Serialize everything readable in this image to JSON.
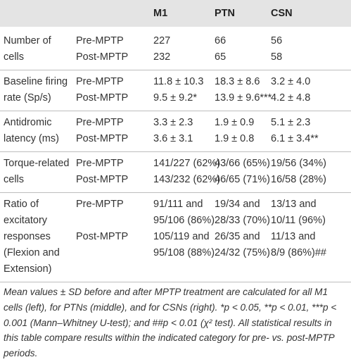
{
  "table": {
    "columns": [
      "M1",
      "PTN",
      "CSN"
    ],
    "groups": [
      {
        "label": [
          "Number of",
          "cells"
        ],
        "rows": [
          {
            "phase": "Pre-MPTP",
            "cells": [
              [
                "227"
              ],
              [
                "66"
              ],
              [
                "56"
              ]
            ]
          },
          {
            "phase": "Post-MPTP",
            "cells": [
              [
                "232"
              ],
              [
                "65"
              ],
              [
                "58"
              ]
            ]
          }
        ]
      },
      {
        "label": [
          "Baseline firing",
          "rate (Sp/s)"
        ],
        "rows": [
          {
            "phase": "Pre-MPTP",
            "cells": [
              [
                "11.8 ± 10.3"
              ],
              [
                "18.3 ± 8.6"
              ],
              [
                "3.2 ± 4.0"
              ]
            ]
          },
          {
            "phase": "Post-MPTP",
            "cells": [
              [
                "9.5 ± 9.2*"
              ],
              [
                "13.9 ± 9.6***"
              ],
              [
                "4.2 ± 4.8"
              ]
            ]
          }
        ]
      },
      {
        "label": [
          "Antidromic",
          "latency (ms)"
        ],
        "rows": [
          {
            "phase": "Pre-MPTP",
            "cells": [
              [
                "3.3 ± 2.3"
              ],
              [
                "1.9 ± 0.9"
              ],
              [
                "5.1 ± 2.3"
              ]
            ]
          },
          {
            "phase": "Post-MPTP",
            "cells": [
              [
                "3.6 ± 3.1"
              ],
              [
                "1.9 ± 0.8"
              ],
              [
                "6.1 ± 3.4**"
              ]
            ]
          }
        ]
      },
      {
        "label": [
          "Torque-related",
          "cells"
        ],
        "rows": [
          {
            "phase": "Pre-MPTP",
            "cells": [
              [
                "141/227 (62%)"
              ],
              [
                "43/66 (65%)"
              ],
              [
                "19/56 (34%)"
              ]
            ]
          },
          {
            "phase": "Post-MPTP",
            "cells": [
              [
                "143/232 (62%)"
              ],
              [
                "46/65 (71%)"
              ],
              [
                "16/58 (28%)"
              ]
            ]
          }
        ]
      },
      {
        "label": [
          "Ratio of",
          "excitatory",
          "responses",
          "(Flexion and",
          "Extension)"
        ],
        "rows": [
          {
            "phase": "Pre-MPTP",
            "cells": [
              [
                "91/111 and",
                "95/106 (86%)"
              ],
              [
                "19/34 and",
                "28/33 (70%)"
              ],
              [
                "13/13 and",
                "10/11 (96%)"
              ]
            ]
          },
          {
            "phase": "Post-MPTP",
            "cells": [
              [
                "105/119 and",
                "95/108 (88%)"
              ],
              [
                "26/35 and",
                "24/32 (75%)"
              ],
              [
                "11/13 and",
                "8/9 (86%)##"
              ]
            ]
          }
        ]
      }
    ]
  },
  "footnote": "Mean values ± SD before and after MPTP treatment are calculated for all M1 cells (left), for PTNs (middle), and for CSNs (right). *p < 0.05, **p < 0.01, ***p < 0.001 (Mann–Whitney U-test); and ##p < 0.01 (χ² test). All statistical results in this table compare results within the indicated category for pre- vs. post-MPTP periods."
}
